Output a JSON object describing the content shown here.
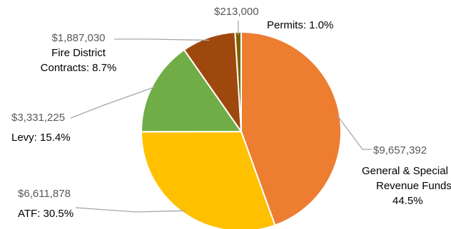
{
  "chart_data": {
    "type": "pie",
    "slices": [
      {
        "name": "General & Special Revenue Funds",
        "value": 9657392,
        "percent": 44.5,
        "color": "#ed7d31",
        "amount_label": "$9,657,392",
        "category_lines": [
          "General & Special",
          "Revenue Funds:",
          "44.5%"
        ]
      },
      {
        "name": "ATF",
        "value": 6611878,
        "percent": 30.5,
        "color": "#ffc000",
        "amount_label": "$6,611,878",
        "category_lines": [
          "ATF: 30.5%"
        ]
      },
      {
        "name": "Levy",
        "value": 3331225,
        "percent": 15.4,
        "color": "#70ad47",
        "amount_label": "$3,331,225",
        "category_lines": [
          "Levy: 15.4%"
        ]
      },
      {
        "name": "Fire District Contracts",
        "value": 1887030,
        "percent": 8.7,
        "color": "#9e480e",
        "amount_label": "$1,887,030",
        "category_lines": [
          "Fire District",
          "Contracts: 8.7%"
        ]
      },
      {
        "name": "Permits",
        "value": 213000,
        "percent": 1.0,
        "color": "#7f6000",
        "amount_label": "$213,000",
        "category_lines": [
          "Permits: 1.0%"
        ]
      }
    ],
    "legend": "none"
  }
}
